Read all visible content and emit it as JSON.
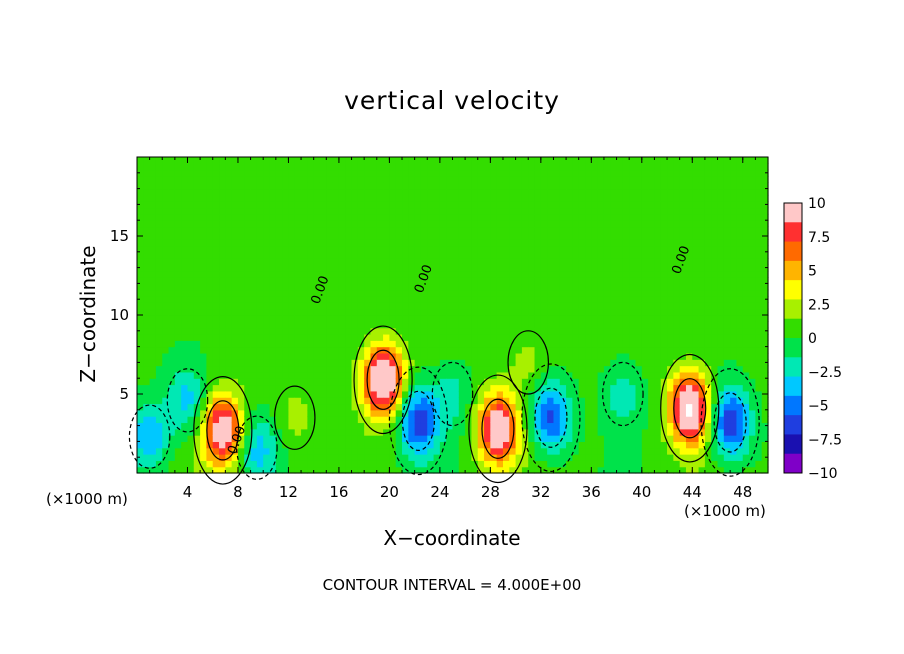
{
  "chart_data": {
    "type": "heatmap",
    "title": "vertical velocity",
    "xlabel": "X−coordinate",
    "ylabel": "Z−coordinate",
    "x_unit_left": "(×1000 m)",
    "x_unit_right": "(×1000 m)",
    "annotation": "CONTOUR INTERVAL = 4.000E+00",
    "xlim": [
      0,
      50
    ],
    "ylim": [
      0,
      20
    ],
    "x_ticks": [
      "4",
      "8",
      "12",
      "16",
      "20",
      "24",
      "28",
      "32",
      "36",
      "40",
      "44",
      "48"
    ],
    "x_tick_values": [
      4,
      8,
      12,
      16,
      20,
      24,
      28,
      32,
      36,
      40,
      44,
      48
    ],
    "y_ticks": [
      "5",
      "10",
      "15"
    ],
    "y_tick_values": [
      5,
      10,
      15
    ],
    "contour_labels": [
      {
        "text": "0.00",
        "x": 8.2,
        "y": 2.0
      },
      {
        "text": "0.00",
        "x": 14.8,
        "y": 11.5
      },
      {
        "text": "0.00",
        "x": 23.0,
        "y": 12.2
      },
      {
        "text": "0.00",
        "x": 43.4,
        "y": 13.4
      }
    ],
    "colorbar": {
      "labels": [
        "10",
        "7.5",
        "5",
        "2.5",
        "0",
        "−2.5",
        "−5",
        "−7.5",
        "−10"
      ],
      "values": [
        10,
        7.5,
        5,
        2.5,
        0,
        -2.5,
        -5,
        -7.5,
        -10
      ],
      "colors": [
        "#ffc8c8",
        "#ff3030",
        "#ff6a00",
        "#ffb400",
        "#ffff00",
        "#a8f000",
        "#33dd00",
        "#00e24a",
        "#00e8b4",
        "#00c8ff",
        "#0077ff",
        "#1f3ee0",
        "#1a10b0",
        "#7f00c8"
      ]
    },
    "features": [
      {
        "x": 6.8,
        "z": 2.7,
        "amplitude": 11.0
      },
      {
        "x": 19.5,
        "z": 5.9,
        "amplitude": 12.5
      },
      {
        "x": 28.6,
        "z": 2.8,
        "amplitude": 11.0
      },
      {
        "x": 43.8,
        "z": 4.1,
        "amplitude": 12.5
      },
      {
        "x": 1.0,
        "z": 2.3,
        "amplitude": -5.0
      },
      {
        "x": 4.0,
        "z": 4.6,
        "amplitude": -4.0
      },
      {
        "x": 9.5,
        "z": 1.6,
        "amplitude": -4.0
      },
      {
        "x": 22.3,
        "z": 3.3,
        "amplitude": -7.5
      },
      {
        "x": 32.8,
        "z": 3.5,
        "amplitude": -7.0
      },
      {
        "x": 47.0,
        "z": 3.2,
        "amplitude": -8.0
      },
      {
        "x": 38.5,
        "z": 5.0,
        "amplitude": -3.0
      },
      {
        "x": 12.5,
        "z": 3.5,
        "amplitude": 1.5
      },
      {
        "x": 25.0,
        "z": 5.0,
        "amplitude": -2.5
      },
      {
        "x": 31.0,
        "z": 7.0,
        "amplitude": 1.8
      }
    ]
  }
}
